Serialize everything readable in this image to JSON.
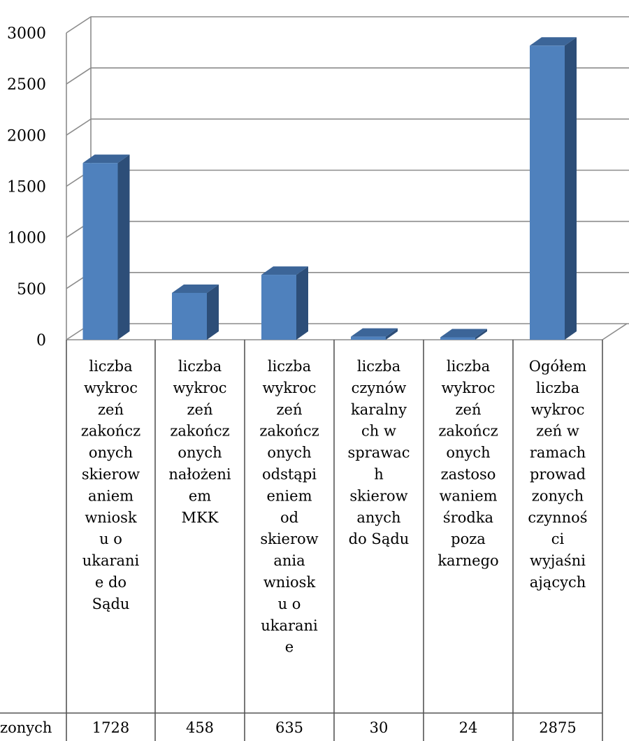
{
  "chart_data": {
    "type": "bar",
    "title": "",
    "xlabel": "",
    "ylabel": "",
    "ylim": [
      0,
      3000
    ],
    "yticks": [
      0,
      500,
      1000,
      1500,
      2000,
      2500,
      3000
    ],
    "grid": true,
    "categories": [
      "liczba wykroczeń zakończonych skierowaniem wniosku o ukaranie do Sądu",
      "liczba wykroczeń zakończonych nałożeniem MKK",
      "liczba wykroczeń zakończonych odstąpieniem od skierowania wniosku o ukaranie",
      "liczba czynów karalnych w sprawach skierowanych do Sądu",
      "liczba wykroczeń zakończonych zastosowaniem środka poza karnego",
      "Ogółem liczba wykroczeń w ramach prowadzonych czynności wyjaśniających"
    ],
    "category_lines": [
      [
        "liczba",
        "wykroc",
        "zeń",
        "zakończ",
        "onych",
        "skierow",
        "aniem",
        "wniosk",
        "u  o",
        "ukarani",
        "e do",
        "Sądu"
      ],
      [
        "liczba",
        "wykroc",
        "zeń",
        "zakończ",
        "onych",
        "nałożeni",
        "em",
        "MKK"
      ],
      [
        "liczba",
        "wykroc",
        "zeń",
        "zakończ",
        "onych",
        "odstąpi",
        "eniem",
        "od",
        "skierow",
        "ania",
        "wniosk",
        "u o",
        "ukarani",
        "e"
      ],
      [
        "liczba",
        "czynów",
        "karalny",
        "ch w",
        "sprawac",
        "h",
        "skierow",
        "anych",
        "do Sądu"
      ],
      [
        "liczba",
        "wykroc",
        "zeń",
        "zakończ",
        "onych",
        "zastoso",
        "waniem",
        "środka",
        "poza",
        "karnego"
      ],
      [
        "Ogółem",
        "liczba",
        "wykroc",
        "zeń w",
        "ramach",
        "prowad",
        "zonych",
        "czynnoś",
        "ci",
        "wyjaśni",
        "ających"
      ]
    ],
    "series": [
      {
        "name": "zonych",
        "values": [
          1728,
          458,
          635,
          30,
          24,
          2875
        ]
      }
    ],
    "value_labels": [
      "1728",
      "458",
      "635",
      "30",
      "24",
      "2875"
    ],
    "colors": {
      "bar_front": "#4F81BD",
      "bar_side": "#2D4E78",
      "bar_top": "#3C6598",
      "grid": "#8C8C8C"
    }
  }
}
